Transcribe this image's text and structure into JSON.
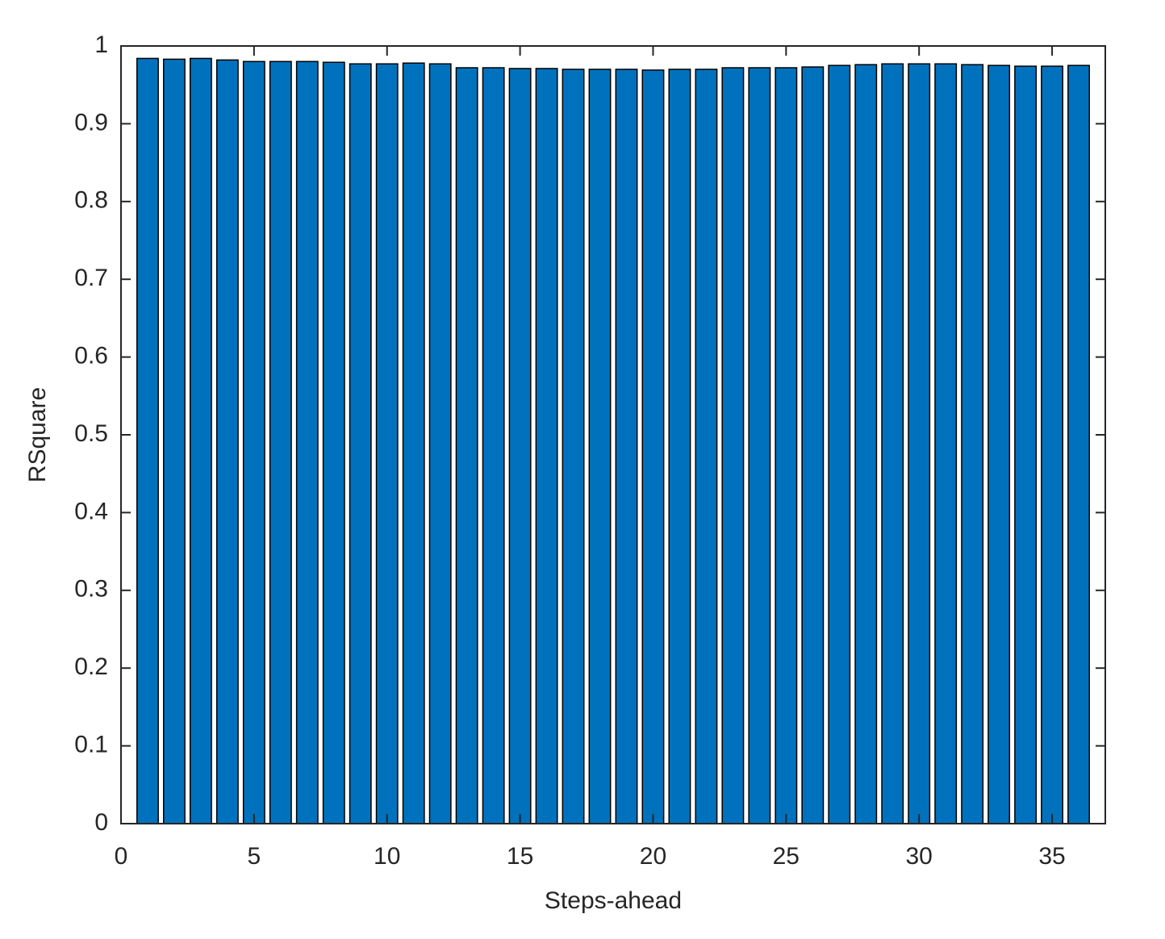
{
  "chart_data": {
    "type": "bar",
    "x_label": "Steps-ahead",
    "y_label": "RSquare",
    "x": [
      1,
      2,
      3,
      4,
      5,
      6,
      7,
      8,
      9,
      10,
      11,
      12,
      13,
      14,
      15,
      16,
      17,
      18,
      19,
      20,
      21,
      22,
      23,
      24,
      25,
      26,
      27,
      28,
      29,
      30,
      31,
      32,
      33,
      34,
      35,
      36
    ],
    "values": [
      0.984,
      0.983,
      0.984,
      0.982,
      0.98,
      0.98,
      0.98,
      0.979,
      0.977,
      0.977,
      0.978,
      0.977,
      0.972,
      0.972,
      0.971,
      0.971,
      0.97,
      0.97,
      0.97,
      0.969,
      0.97,
      0.97,
      0.972,
      0.972,
      0.972,
      0.973,
      0.975,
      0.976,
      0.977,
      0.977,
      0.977,
      0.976,
      0.975,
      0.974,
      0.974,
      0.975
    ],
    "color": "#0072bd",
    "xlim": [
      0,
      37
    ],
    "xticks": [
      0,
      5,
      10,
      15,
      20,
      25,
      30,
      35
    ],
    "ylim": [
      0,
      1
    ],
    "yticks": [
      0,
      0.1,
      0.2,
      0.3,
      0.4,
      0.5,
      0.6,
      0.7,
      0.8,
      0.9,
      1
    ],
    "grid": false
  }
}
